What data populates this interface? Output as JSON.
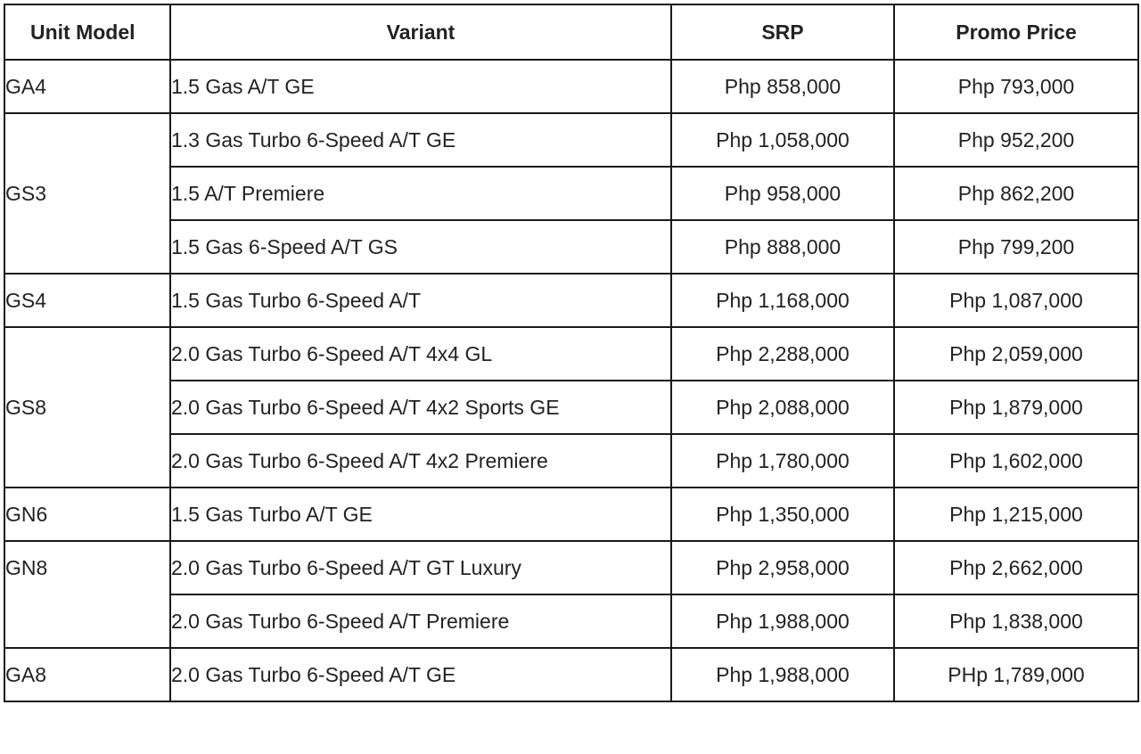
{
  "table": {
    "headers": {
      "unit_model": "Unit Model",
      "variant": "Variant",
      "srp": "SRP",
      "promo_price": "Promo Price"
    },
    "rows": [
      {
        "model": "GA4",
        "variant": "1.5 Gas A/T GE",
        "srp": "Php 858,000",
        "promo": "Php 793,000"
      },
      {
        "model": "GS3",
        "variant": "1.3 Gas Turbo 6-Speed A/T GE",
        "srp": "Php 1,058,000",
        "promo": "Php 952,200"
      },
      {
        "model": "",
        "variant": "1.5 A/T Premiere",
        "srp": "Php 958,000",
        "promo": "Php 862,200"
      },
      {
        "model": "",
        "variant": "1.5 Gas 6-Speed A/T GS",
        "srp": "Php 888,000",
        "promo": "Php 799,200"
      },
      {
        "model": "GS4",
        "variant": "1.5 Gas Turbo 6-Speed A/T",
        "srp": "Php 1,168,000",
        "promo": "Php 1,087,000"
      },
      {
        "model": "GS8",
        "variant": "2.0 Gas Turbo 6-Speed A/T 4x4 GL",
        "srp": "Php 2,288,000",
        "promo": "Php 2,059,000"
      },
      {
        "model": "",
        "variant": "2.0 Gas Turbo 6-Speed A/T 4x2 Sports GE",
        "srp": "Php 2,088,000",
        "promo": "Php 1,879,000"
      },
      {
        "model": "",
        "variant": "2.0 Gas Turbo 6-Speed A/T 4x2 Premiere",
        "srp": "Php 1,780,000",
        "promo": "Php 1,602,000"
      },
      {
        "model": "GN6",
        "variant": "1.5 Gas Turbo A/T GE",
        "srp": "Php 1,350,000",
        "promo": "Php 1,215,000"
      },
      {
        "model": "GN8",
        "variant": "2.0 Gas Turbo 6-Speed A/T GT Luxury",
        "srp": "Php 2,958,000",
        "promo": "Php 2,662,000"
      },
      {
        "model": "",
        "variant": "2.0 Gas Turbo 6-Speed A/T Premiere",
        "srp": "Php 1,988,000",
        "promo": "Php 1,838,000"
      },
      {
        "model": "GA8",
        "variant": "2.0 Gas Turbo 6-Speed A/T GE",
        "srp": "Php 1,988,000",
        "promo": "PHp 1,789,000"
      }
    ]
  }
}
